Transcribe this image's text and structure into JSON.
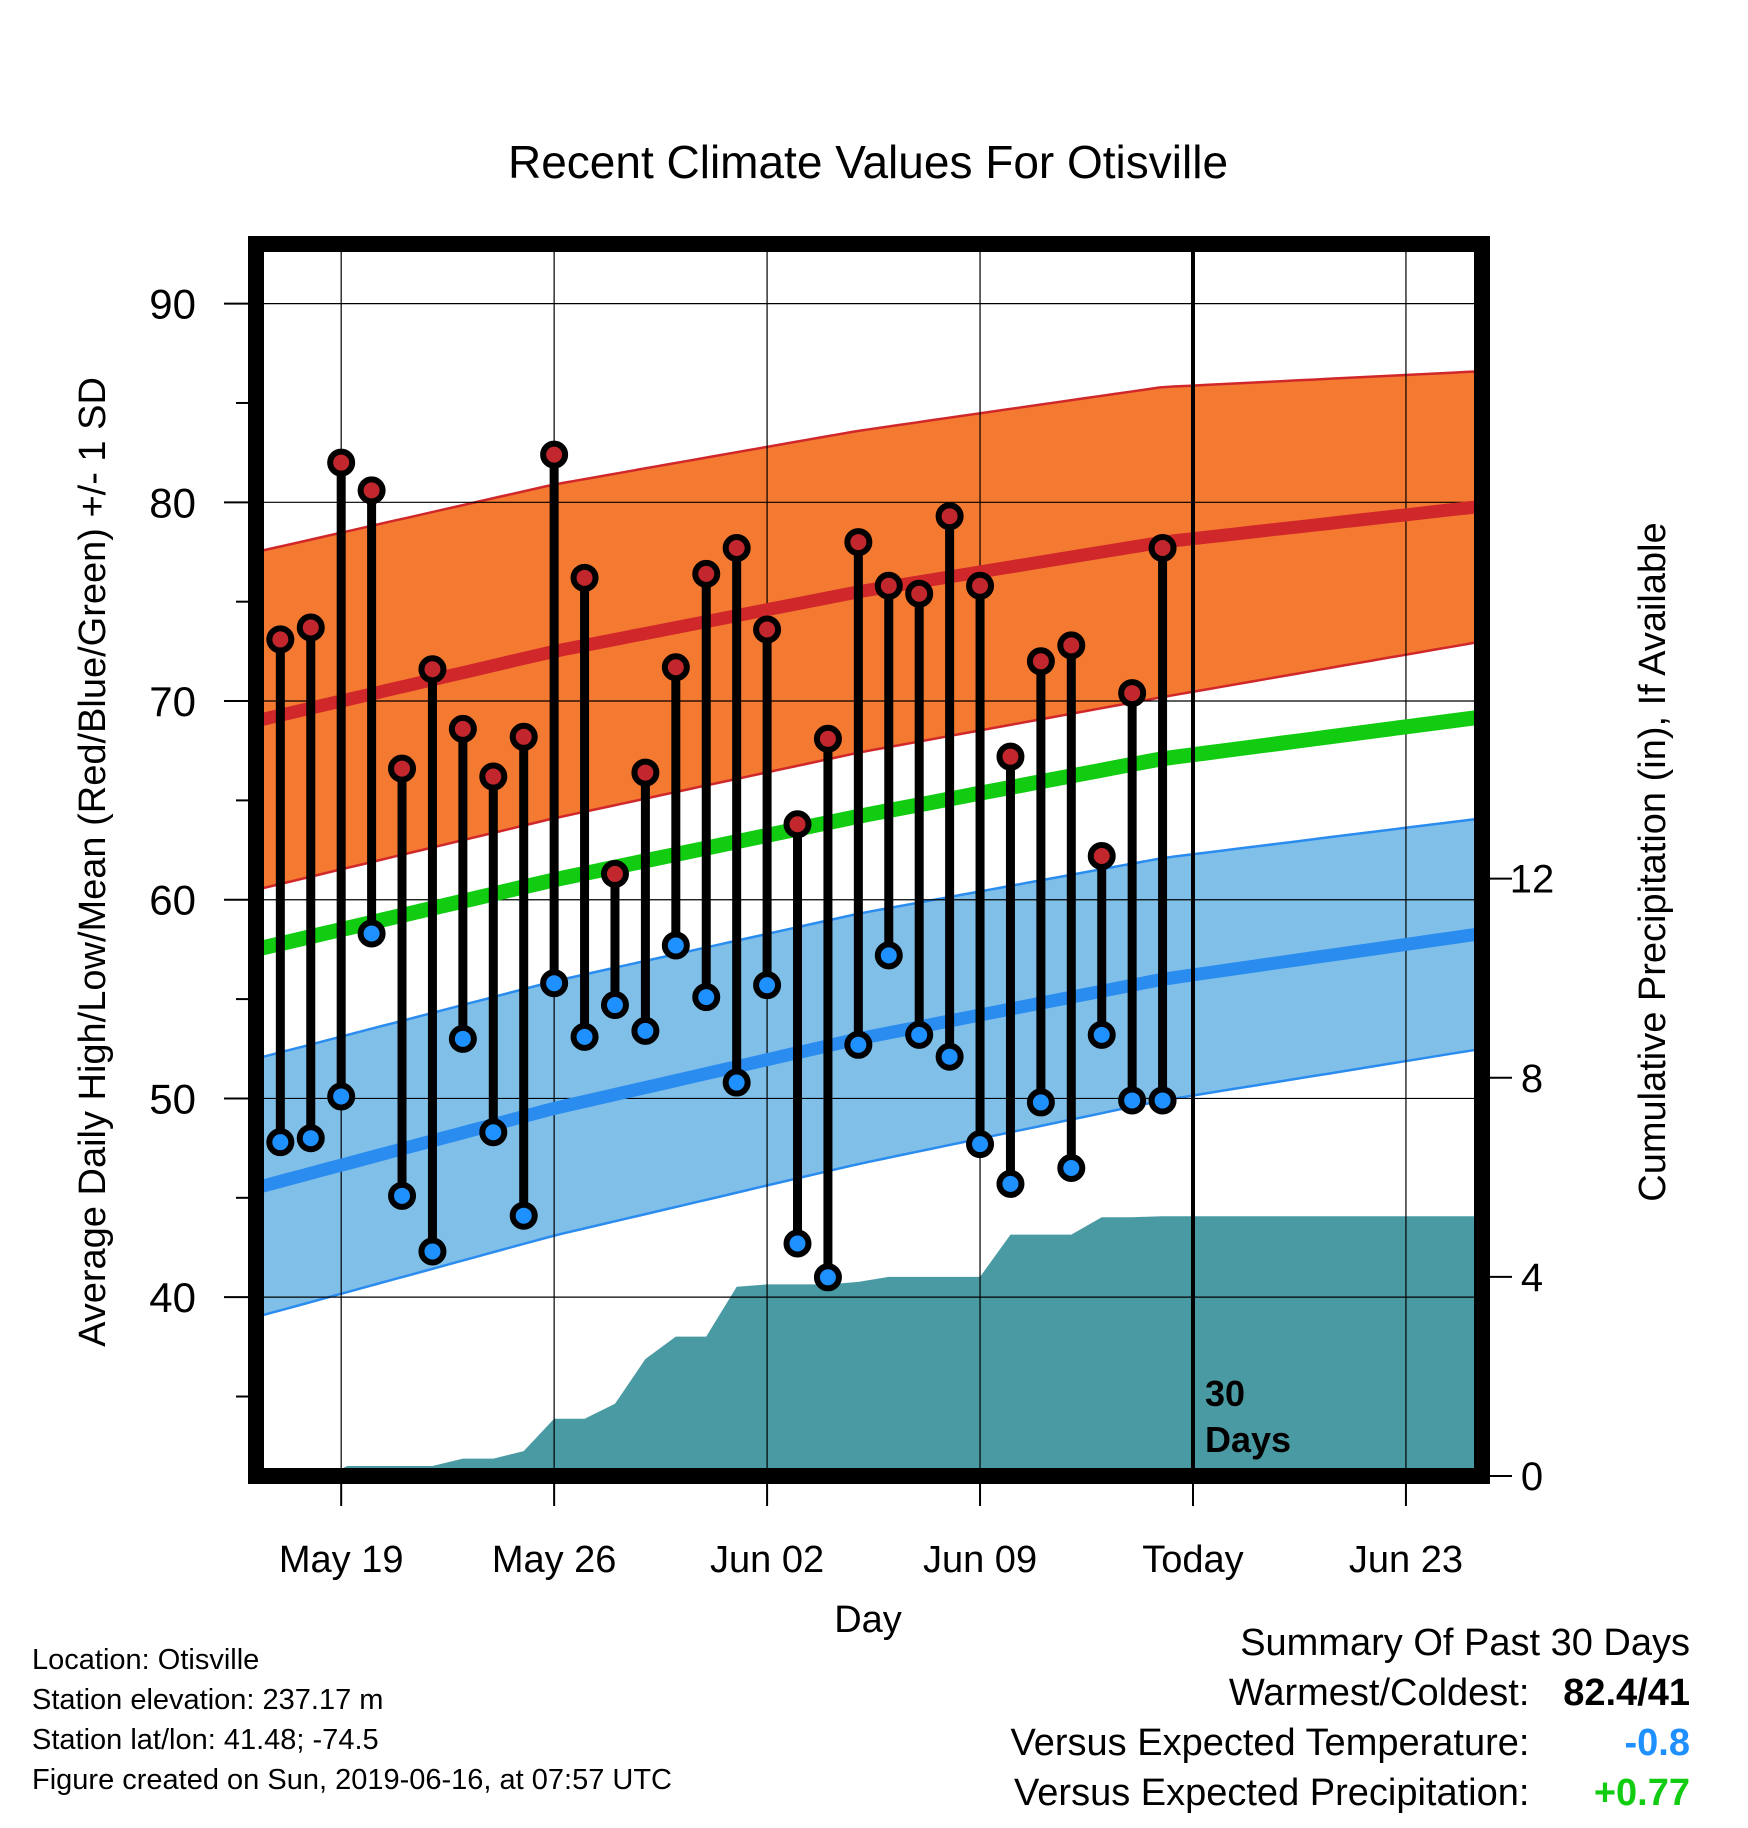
{
  "chart_data": {
    "type": "line",
    "title": "Recent Climate Values For Otisville",
    "xlabel": "Day",
    "ylabel": "Average Daily High/Low/Mean (Red/Blue/Green) +/- 1 SD",
    "ylabel_right": "Cumulative Precipitation (in), If Available",
    "x_ticks": [
      "May 19",
      "May 26",
      "Jun 02",
      "Jun 09",
      "Today",
      "Jun 23"
    ],
    "today_annotation": "30 Days",
    "x_days": [
      1,
      2,
      3,
      4,
      5,
      6,
      7,
      8,
      9,
      10,
      11,
      12,
      13,
      14,
      15,
      16,
      17,
      18,
      19,
      20,
      21,
      22,
      23,
      24,
      25,
      26,
      27,
      28,
      29,
      30
    ],
    "day_of_may19": 3,
    "today_day": 31,
    "x_range": [
      0.2,
      40.5
    ],
    "y_left_range": [
      31,
      93
    ],
    "y_left_ticks": [
      40,
      50,
      60,
      70,
      80,
      90
    ],
    "y_right_range": [
      0,
      24.75
    ],
    "y_right_ticks": [
      0,
      4,
      8,
      12
    ],
    "grid": true,
    "series": [
      {
        "name": "High",
        "color": "#c1272d",
        "values": [
          73.1,
          73.7,
          82.0,
          80.6,
          66.6,
          71.6,
          68.6,
          66.2,
          68.2,
          82.4,
          76.2,
          61.3,
          66.4,
          71.7,
          76.4,
          77.7,
          73.6,
          63.8,
          68.1,
          78.0,
          75.8,
          75.4,
          79.3,
          75.8,
          67.2,
          72.0,
          72.8,
          62.2,
          70.4,
          77.7
        ]
      },
      {
        "name": "Low",
        "color": "#1e90ff",
        "values": [
          47.8,
          48.0,
          50.1,
          58.3,
          45.1,
          42.3,
          53.0,
          48.3,
          44.1,
          55.8,
          53.1,
          54.7,
          53.4,
          57.7,
          55.1,
          50.8,
          55.7,
          42.7,
          41.0,
          52.7,
          57.2,
          53.2,
          52.1,
          47.7,
          45.7,
          49.8,
          46.5,
          53.2,
          49.9,
          49.9
        ]
      }
    ],
    "normals": {
      "x": [
        0.2,
        10,
        20,
        30,
        40.5
      ],
      "high_mean": [
        69.0,
        72.5,
        75.5,
        78.0,
        79.8
      ],
      "high_sd": [
        8.5,
        8.4,
        8.1,
        7.8,
        6.8
      ],
      "low_mean": [
        45.5,
        49.5,
        53.0,
        56.0,
        58.3
      ],
      "low_sd": [
        6.5,
        6.4,
        6.3,
        6.1,
        5.8
      ],
      "avg_mean": [
        57.5,
        61.0,
        64.2,
        67.1,
        69.2
      ],
      "band_high_color": "#f47931",
      "band_low_color": "#80c0e8",
      "mean_high_color": "#d0282a",
      "mean_low_color": "#2b8cf0",
      "mean_avg_color": "#11cc11"
    },
    "precip": {
      "color": "#4a9aa3",
      "x": [
        0.2,
        2.5,
        3.2,
        6.0,
        7.0,
        8.0,
        9.0,
        10.0,
        11.0,
        12.0,
        13.0,
        14.0,
        15.0,
        16.0,
        17.0,
        19.0,
        20.0,
        21.0,
        22.0,
        23.0,
        24.0,
        25.0,
        26.0,
        27.0,
        28.0,
        29.0,
        30.0,
        40.5
      ],
      "values": [
        0.0,
        0.0,
        0.2,
        0.2,
        0.35,
        0.35,
        0.5,
        1.15,
        1.15,
        1.45,
        2.35,
        2.8,
        2.8,
        3.8,
        3.85,
        3.85,
        3.9,
        4.0,
        4.0,
        4.0,
        4.0,
        4.85,
        4.85,
        4.85,
        5.2,
        5.2,
        5.22,
        5.22
      ]
    }
  },
  "info": {
    "location": "Location: Otisville",
    "elevation": "Station elevation: 237.17 m",
    "latlon": "Station lat/lon: 41.48; -74.5",
    "created": "Figure created on Sun, 2019-06-16, at 07:57 UTC"
  },
  "summary": {
    "heading": "Summary Of Past 30 Days",
    "warmest_label": "Warmest/Coldest:",
    "warmest_value": "82.4/41",
    "temp_label": "Versus Expected Temperature:",
    "temp_value": "-0.8",
    "temp_color": "#1e90ff",
    "precip_label": "Versus Expected Precipitation:",
    "precip_value": "+0.77",
    "precip_color": "#11cc11"
  }
}
